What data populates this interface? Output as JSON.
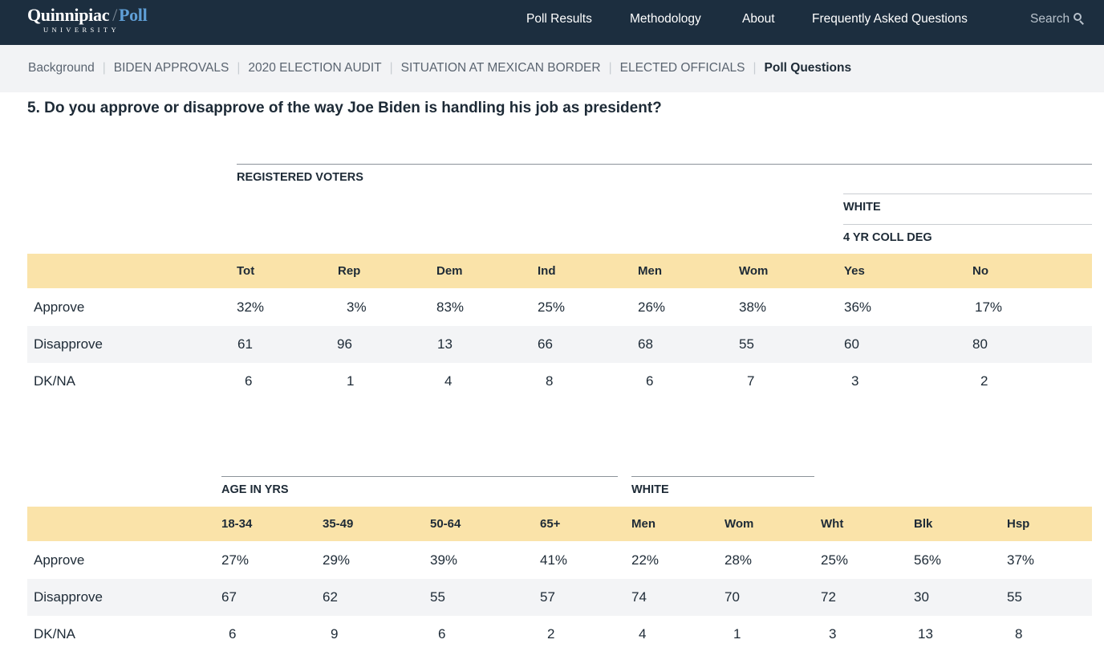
{
  "header": {
    "logo_main": "Quinnipiac",
    "logo_poll": "Poll",
    "logo_sub": "UNIVERSITY",
    "nav": [
      "Poll Results",
      "Methodology",
      "About",
      "Frequently Asked Questions"
    ],
    "search_label": "Search"
  },
  "subnav": {
    "items": [
      "Background",
      "BIDEN APPROVALS",
      "2020 ELECTION AUDIT",
      "SITUATION AT MEXICAN BORDER",
      "ELECTED OFFICIALS"
    ],
    "active": "Poll Questions"
  },
  "question": "5. Do you approve or disapprove of the way Joe Biden is handling his job as president?",
  "table1": {
    "group_registered": "REGISTERED VOTERS",
    "group_white": "WHITE",
    "group_coll": "4 YR COLL DEG",
    "columns": [
      "Tot",
      "Rep",
      "Dem",
      "Ind",
      "Men",
      "Wom",
      "Yes",
      "No"
    ],
    "rows": [
      {
        "label": "Approve",
        "values": [
          "32%",
          "3%",
          "83%",
          "25%",
          "26%",
          "38%",
          "36%",
          "17%"
        ]
      },
      {
        "label": "Disapprove",
        "values": [
          "61",
          "96",
          "13",
          "66",
          "68",
          "55",
          "60",
          "80"
        ]
      },
      {
        "label": "DK/NA",
        "values": [
          "6",
          "1",
          "4",
          "8",
          "6",
          "7",
          "3",
          "2"
        ]
      }
    ]
  },
  "table2": {
    "group_age": "AGE IN YRS",
    "group_white": "WHITE",
    "columns": [
      "18-34",
      "35-49",
      "50-64",
      "65+",
      "Men",
      "Wom",
      "Wht",
      "Blk",
      "Hsp"
    ],
    "rows": [
      {
        "label": "Approve",
        "values": [
          "27%",
          "29%",
          "39%",
          "41%",
          "22%",
          "28%",
          "25%",
          "56%",
          "37%"
        ]
      },
      {
        "label": "Disapprove",
        "values": [
          "67",
          "62",
          "55",
          "57",
          "74",
          "70",
          "72",
          "30",
          "55"
        ]
      },
      {
        "label": "DK/NA",
        "values": [
          "6",
          "9",
          "6",
          "2",
          "4",
          "1",
          "3",
          "13",
          "8"
        ]
      }
    ]
  }
}
